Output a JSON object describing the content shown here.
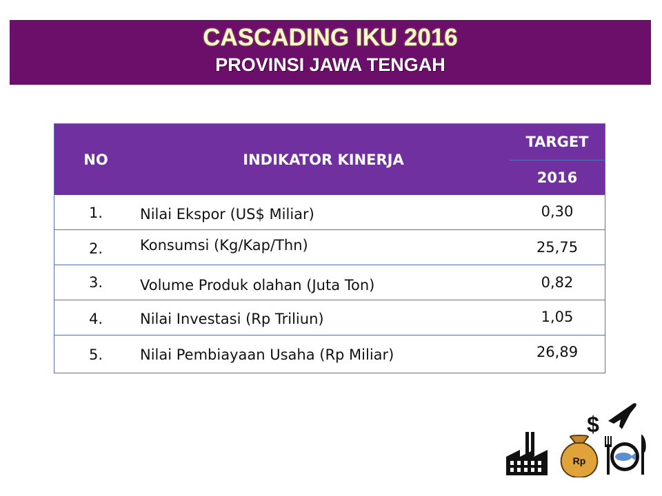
{
  "header": {
    "title": "CASCADING IKU 2016",
    "subtitle": "PROVINSI JAWA TENGAH"
  },
  "table": {
    "columns": {
      "no": "NO",
      "indicator": "INDIKATOR KINERJA",
      "target": "TARGET",
      "year": "2016"
    },
    "rows": [
      {
        "no": "1.",
        "indicator": "Nilai Ekspor (US$ Miliar)",
        "value": "0,30"
      },
      {
        "no": "2.",
        "indicator": "Konsumsi (Kg/Kap/Thn)",
        "value": "25,75"
      },
      {
        "no": "3.",
        "indicator": "Volume Produk olahan (Juta Ton)",
        "value": "0,82"
      },
      {
        "no": "4.",
        "indicator": "Nilai Investasi (Rp Triliun)",
        "value": "1,05"
      },
      {
        "no": "5.",
        "indicator": "Nilai Pembiayaan Usaha (Rp Miliar)",
        "value": "26,89"
      }
    ]
  },
  "icons": {
    "dollar_symbol": "$",
    "money_bag_label": "Rp",
    "names": [
      "factory-icon",
      "money-bag-icon",
      "dollar-icon",
      "airplane-icon",
      "fork-icon",
      "plate-fish-icon",
      "knife-icon"
    ]
  },
  "colors": {
    "banner": "#6b0f6b",
    "title_text": "#fbf7c9",
    "table_header": "#7030a0",
    "table_border": "#5a6fb0"
  }
}
